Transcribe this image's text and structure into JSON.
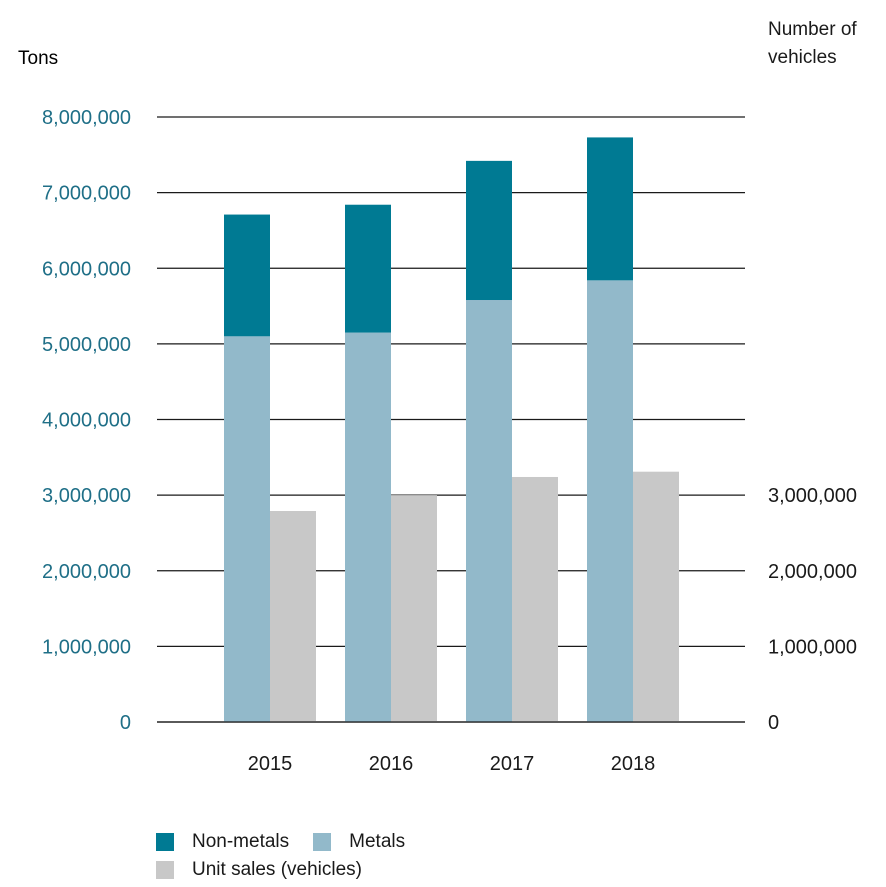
{
  "chart_data": {
    "type": "bar",
    "title": "",
    "left_axis_label": "Tons",
    "right_axis_label": "Number of vehicles",
    "categories": [
      "2015",
      "2016",
      "2017",
      "2018"
    ],
    "left_ylim": [
      0,
      8000000
    ],
    "left_ticks": [
      "0",
      "1,000,000",
      "2,000,000",
      "3,000,000",
      "4,000,000",
      "5,000,000",
      "6,000,000",
      "7,000,000",
      "8,000,000"
    ],
    "right_ylim": [
      0,
      3000000
    ],
    "right_ticks": [
      "0",
      "1,000,000",
      "2,000,000",
      "3,000,000"
    ],
    "series": [
      {
        "name": "Metals",
        "axis": "left",
        "stack": "tons",
        "values": [
          5100000,
          5150000,
          5580000,
          5840000
        ],
        "color": "#92b9ca"
      },
      {
        "name": "Non-metals",
        "axis": "left",
        "stack": "tons",
        "values": [
          1610000,
          1690000,
          1840000,
          1890000
        ],
        "color": "#007a93"
      },
      {
        "name": "Unit sales (vehicles)",
        "axis": "left",
        "stack": "units",
        "values": [
          2790000,
          3000000,
          3240000,
          3310000
        ],
        "color": "#c8c8c8"
      }
    ],
    "grid": true,
    "colors": {
      "left_axis_text": "#1f6f87",
      "right_axis_text": "#1a1a1a",
      "gridline": "#1a1a1a"
    }
  },
  "legend": {
    "non_metals": "Non-metals",
    "metals": "Metals",
    "unit_sales": "Unit sales (vehicles)"
  }
}
